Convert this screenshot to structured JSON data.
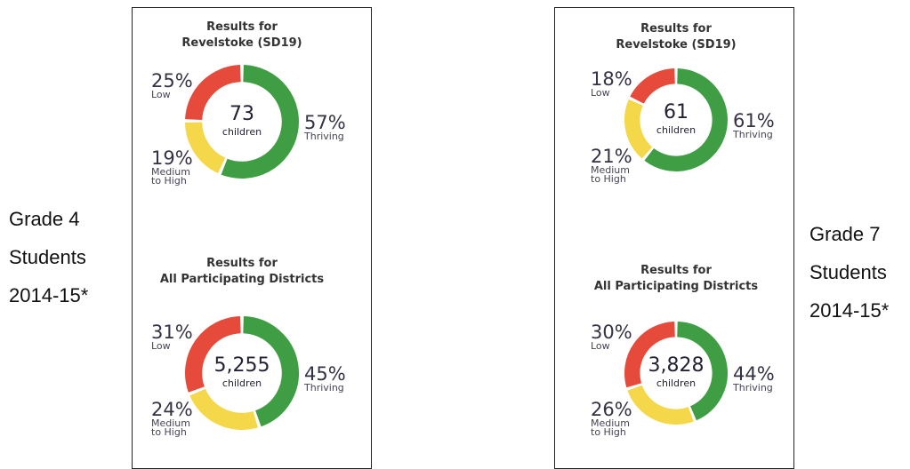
{
  "side_labels": [
    [
      "Grade 4",
      "Students",
      "2014-15*"
    ],
    [
      "Grade 7",
      "Students",
      "2014-15*"
    ]
  ],
  "chart_data": [
    {
      "type": "donut",
      "title": [
        "Results for",
        "Revelstoke (SD19)"
      ],
      "total": 73,
      "total_unit": "children",
      "categories": [
        "Thriving",
        "Medium to High",
        "Low"
      ],
      "values": [
        57,
        19,
        25
      ],
      "value_labels": [
        "57%",
        "19%",
        "25%"
      ],
      "colors": [
        "#3f9e43",
        "#f4d84a",
        "#e64a3b"
      ]
    },
    {
      "type": "donut",
      "title": [
        "Results for",
        "All Participating Districts"
      ],
      "total": 5255,
      "total_label": "5,255",
      "total_unit": "children",
      "categories": [
        "Thriving",
        "Medium to High",
        "Low"
      ],
      "values": [
        45,
        24,
        31
      ],
      "value_labels": [
        "45%",
        "24%",
        "31%"
      ],
      "colors": [
        "#3f9e43",
        "#f4d84a",
        "#e64a3b"
      ]
    },
    {
      "type": "donut",
      "title": [
        "Results for",
        "Revelstoke (SD19)"
      ],
      "total": 61,
      "total_unit": "children",
      "categories": [
        "Thriving",
        "Medium to High",
        "Low"
      ],
      "values": [
        61,
        21,
        18
      ],
      "value_labels": [
        "61%",
        "21%",
        "18%"
      ],
      "colors": [
        "#3f9e43",
        "#f4d84a",
        "#e64a3b"
      ]
    },
    {
      "type": "donut",
      "title": [
        "Results for",
        "All Participating Districts"
      ],
      "total": 3828,
      "total_label": "3,828",
      "total_unit": "children",
      "categories": [
        "Thriving",
        "Medium to High",
        "Low"
      ],
      "values": [
        44,
        26,
        30
      ],
      "value_labels": [
        "44%",
        "26%",
        "30%"
      ],
      "colors": [
        "#3f9e43",
        "#f4d84a",
        "#e64a3b"
      ]
    }
  ]
}
